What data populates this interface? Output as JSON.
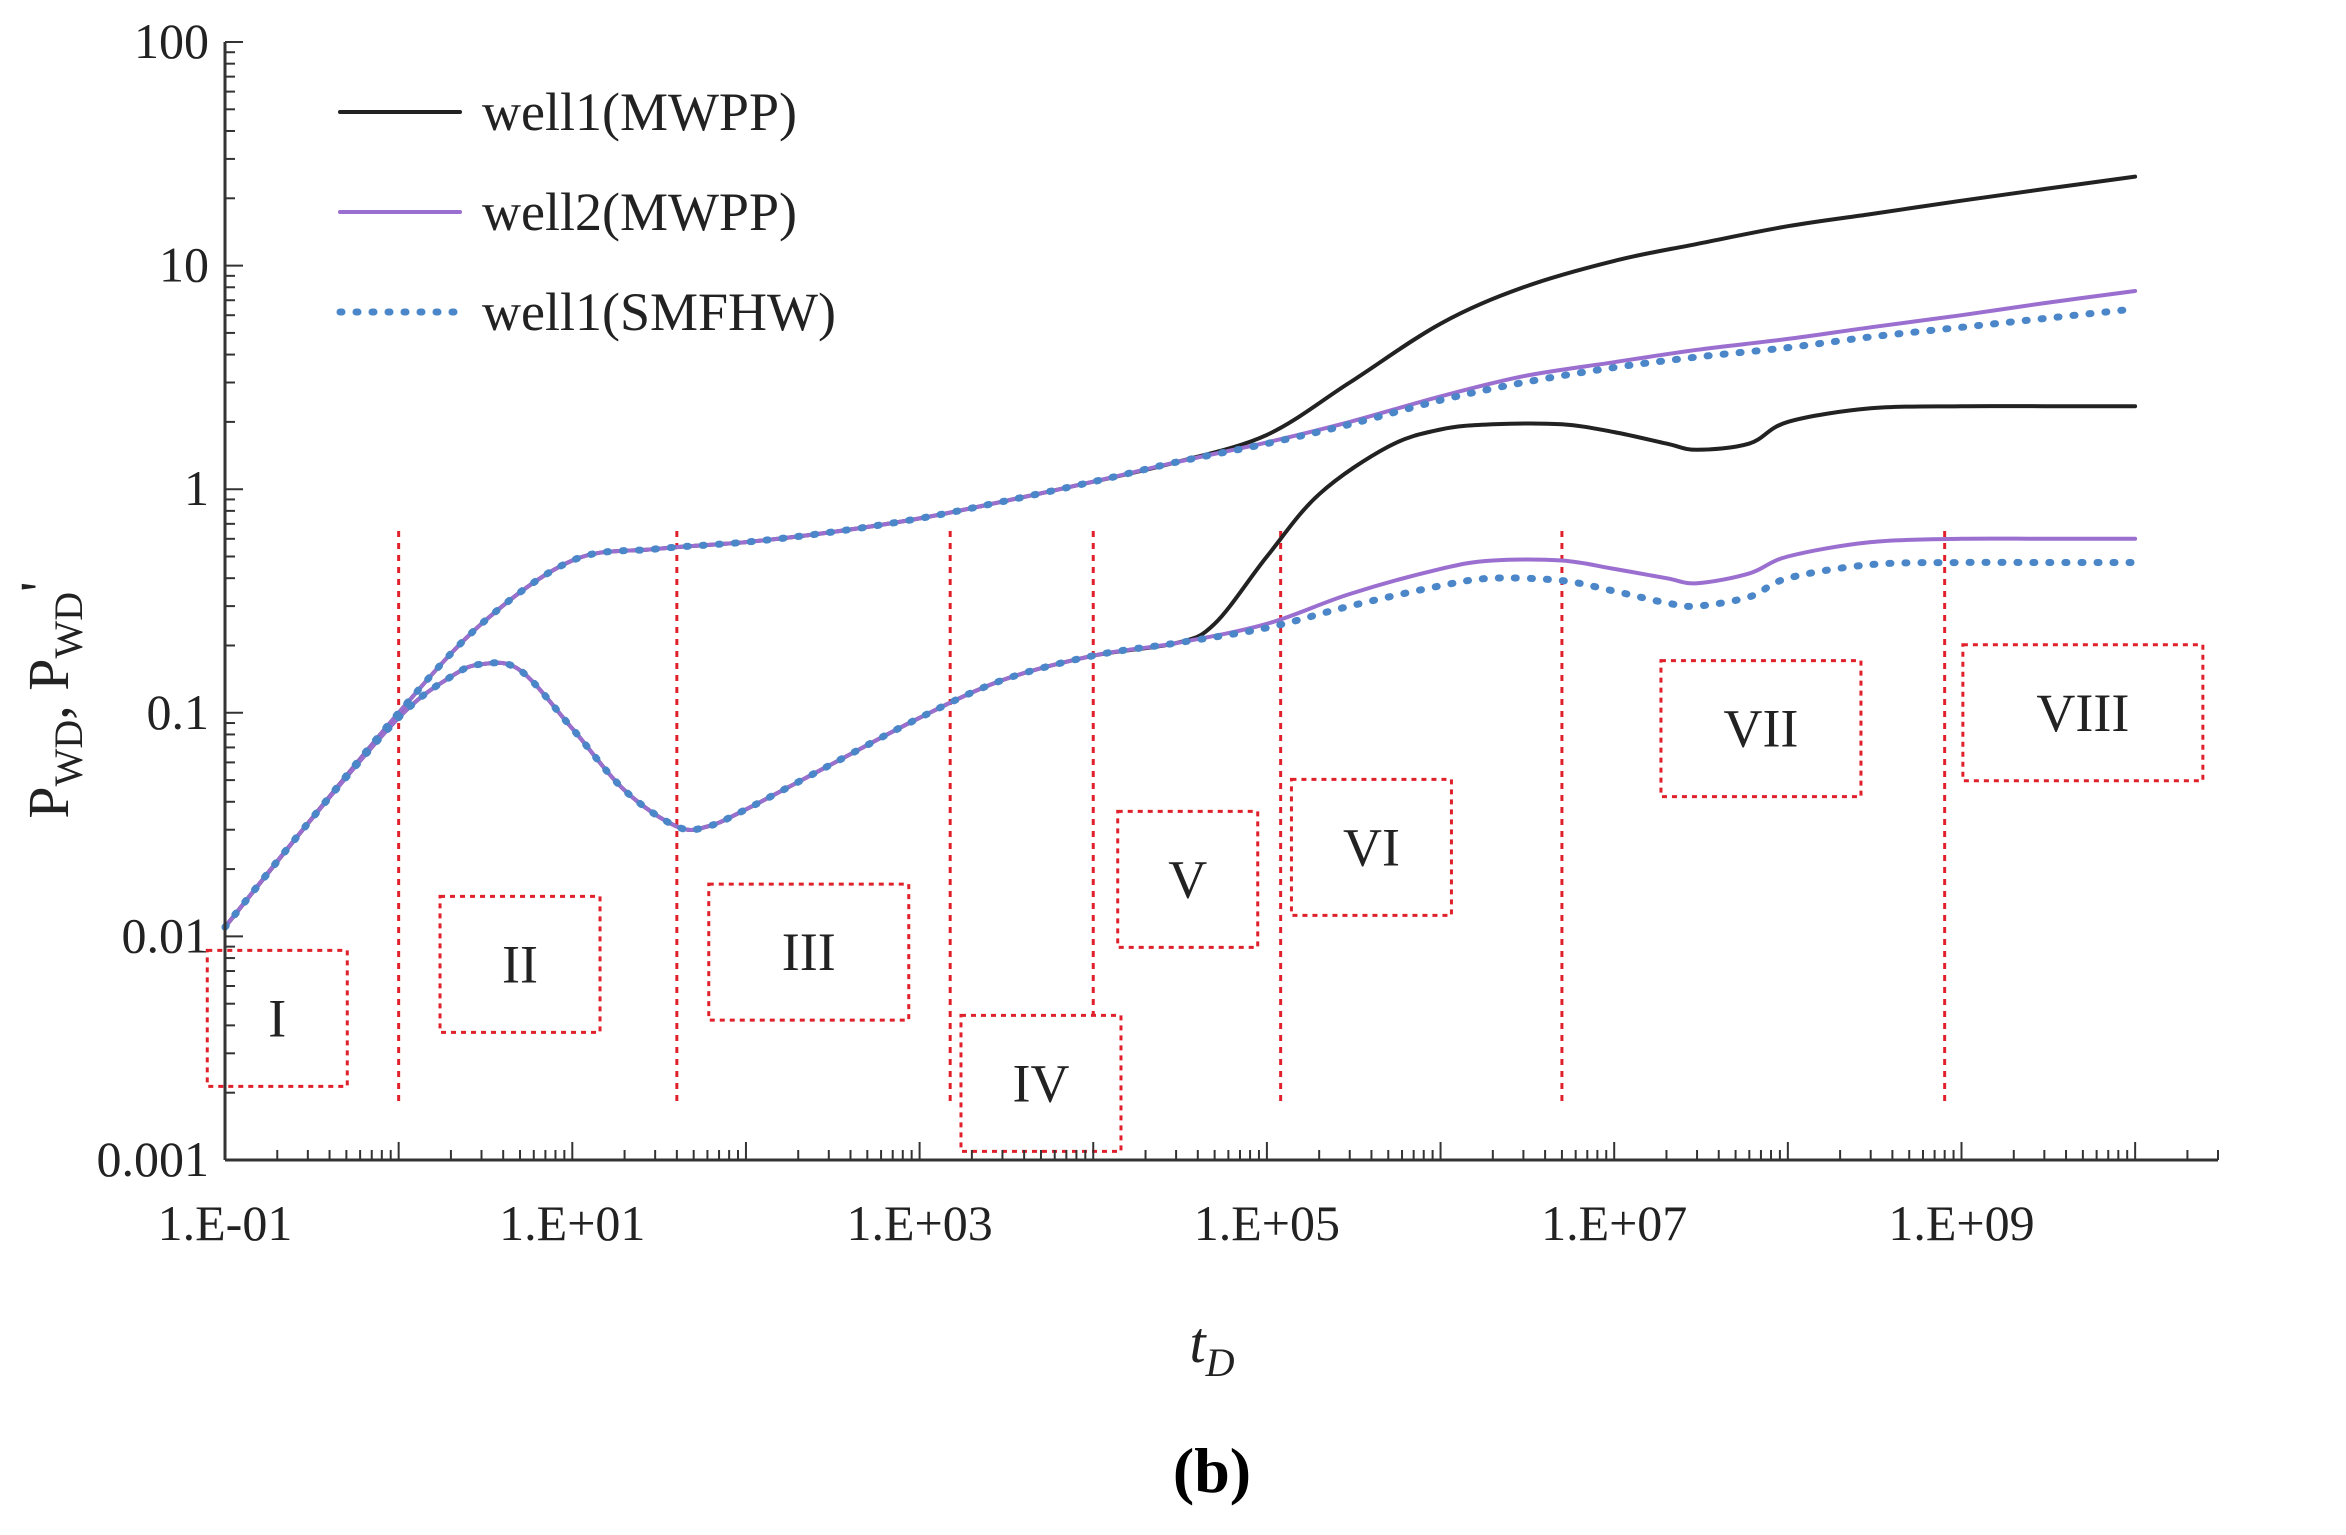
{
  "chart_data": {
    "type": "line",
    "panel_label": "(b)",
    "xlabel": "t",
    "xlabel_subscript": "D",
    "ylabel_parts": [
      "P",
      "WD",
      ", P",
      "WD",
      "'"
    ],
    "x_scale": "log",
    "y_scale": "log",
    "xlim": [
      0.1,
      30000000000
    ],
    "ylim": [
      0.001,
      100
    ],
    "x_ticks": [
      {
        "value": 0.1,
        "label": "1.E-01"
      },
      {
        "value": 10,
        "label": "1.E+01"
      },
      {
        "value": 1000,
        "label": "1.E+03"
      },
      {
        "value": 100000,
        "label": "1.E+05"
      },
      {
        "value": 10000000,
        "label": "1.E+07"
      },
      {
        "value": 1000000000,
        "label": "1.E+09"
      }
    ],
    "y_ticks": [
      {
        "value": 0.001,
        "label": "0.001"
      },
      {
        "value": 0.01,
        "label": "0.01"
      },
      {
        "value": 0.1,
        "label": "0.1"
      },
      {
        "value": 1,
        "label": "1"
      },
      {
        "value": 10,
        "label": "10"
      },
      {
        "value": 100,
        "label": "100"
      }
    ],
    "legend_position": "top-left",
    "series": [
      {
        "name": "well1(MWPP)",
        "color": "#222222",
        "style": "solid",
        "kind": "pressure",
        "x": [
          0.1,
          0.3,
          1,
          3,
          10,
          30,
          100,
          300,
          1000,
          3000,
          10000,
          30000,
          100000,
          300000,
          1000000,
          3000000,
          10000000,
          30000000,
          100000000,
          300000000,
          1000000000,
          3000000000,
          10000000000
        ],
        "y": [
          0.011,
          0.032,
          0.1,
          0.25,
          0.48,
          0.54,
          0.58,
          0.64,
          0.74,
          0.88,
          1.08,
          1.32,
          1.75,
          3.0,
          5.5,
          8.0,
          10.5,
          12.5,
          15.0,
          17.0,
          19.5,
          22.0,
          25.0
        ]
      },
      {
        "name": "well2(MWPP)",
        "color": "#9b6fcf",
        "style": "solid",
        "kind": "pressure",
        "x": [
          0.1,
          0.3,
          1,
          3,
          10,
          30,
          100,
          300,
          1000,
          3000,
          10000,
          30000,
          100000,
          300000,
          1000000,
          3000000,
          10000000,
          30000000,
          100000000,
          300000000,
          1000000000,
          3000000000,
          10000000000
        ],
        "y": [
          0.011,
          0.032,
          0.1,
          0.25,
          0.48,
          0.54,
          0.58,
          0.64,
          0.74,
          0.88,
          1.08,
          1.32,
          1.62,
          2.0,
          2.6,
          3.2,
          3.7,
          4.2,
          4.7,
          5.3,
          6.0,
          6.8,
          7.7
        ]
      },
      {
        "name": "well1(SMFHW)",
        "color": "#4a86c8",
        "style": "dotted",
        "kind": "pressure",
        "x": [
          0.1,
          0.3,
          1,
          3,
          10,
          30,
          100,
          300,
          1000,
          3000,
          10000,
          30000,
          100000,
          300000,
          1000000,
          3000000,
          10000000,
          30000000,
          100000000,
          300000000,
          1000000000,
          3000000000,
          10000000000
        ],
        "y": [
          0.011,
          0.032,
          0.1,
          0.25,
          0.48,
          0.54,
          0.58,
          0.64,
          0.74,
          0.88,
          1.08,
          1.32,
          1.6,
          1.95,
          2.5,
          3.0,
          3.5,
          3.9,
          4.3,
          4.8,
          5.3,
          5.8,
          6.4
        ]
      },
      {
        "name": "well1(MWPP) derivative",
        "color": "#222222",
        "style": "solid",
        "kind": "derivative",
        "x": [
          0.1,
          0.3,
          1,
          2,
          3,
          5,
          10,
          20,
          40,
          60,
          100,
          300,
          1000,
          3000,
          10000,
          30000,
          50000,
          100000,
          200000,
          500000,
          1000000,
          2000000,
          5000000,
          10000000,
          20000000,
          30000000,
          60000000,
          100000000,
          300000000,
          1000000000,
          3000000000,
          10000000000
        ],
        "y": [
          0.011,
          0.032,
          0.095,
          0.145,
          0.165,
          0.155,
          0.085,
          0.045,
          0.031,
          0.031,
          0.037,
          0.058,
          0.095,
          0.14,
          0.18,
          0.205,
          0.25,
          0.5,
          0.95,
          1.55,
          1.85,
          1.95,
          1.95,
          1.8,
          1.6,
          1.5,
          1.6,
          2.0,
          2.3,
          2.35,
          2.35,
          2.35
        ]
      },
      {
        "name": "well2(MWPP) derivative",
        "color": "#9b6fcf",
        "style": "solid",
        "kind": "derivative",
        "x": [
          0.1,
          0.3,
          1,
          2,
          3,
          5,
          10,
          20,
          40,
          60,
          100,
          300,
          1000,
          3000,
          10000,
          30000,
          100000,
          300000,
          1000000,
          2000000,
          5000000,
          10000000,
          20000000,
          30000000,
          60000000,
          100000000,
          300000000,
          1000000000,
          3000000000,
          10000000000
        ],
        "y": [
          0.011,
          0.032,
          0.095,
          0.145,
          0.165,
          0.155,
          0.085,
          0.045,
          0.031,
          0.031,
          0.037,
          0.058,
          0.095,
          0.14,
          0.18,
          0.205,
          0.25,
          0.34,
          0.44,
          0.48,
          0.48,
          0.44,
          0.4,
          0.38,
          0.42,
          0.5,
          0.58,
          0.6,
          0.6,
          0.6
        ]
      },
      {
        "name": "well1(SMFHW) derivative",
        "color": "#4a86c8",
        "style": "dotted",
        "kind": "derivative",
        "x": [
          0.1,
          0.3,
          1,
          2,
          3,
          5,
          10,
          20,
          40,
          60,
          100,
          300,
          1000,
          3000,
          10000,
          30000,
          100000,
          300000,
          1000000,
          2000000,
          5000000,
          10000000,
          20000000,
          30000000,
          60000000,
          100000000,
          300000000,
          1000000000,
          3000000000,
          10000000000
        ],
        "y": [
          0.011,
          0.032,
          0.095,
          0.145,
          0.165,
          0.155,
          0.085,
          0.045,
          0.031,
          0.031,
          0.037,
          0.058,
          0.095,
          0.14,
          0.18,
          0.205,
          0.24,
          0.3,
          0.37,
          0.4,
          0.39,
          0.35,
          0.31,
          0.3,
          0.33,
          0.4,
          0.46,
          0.47,
          0.47,
          0.47
        ]
      }
    ],
    "vlines": [
      1,
      40,
      1500,
      10000,
      120000,
      5000000,
      800000000
    ],
    "regions": [
      {
        "label": "I",
        "x_center": 0.2,
        "y_center": 0.0043
      },
      {
        "label": "II",
        "x_center": 5,
        "y_center": 0.0075
      },
      {
        "label": "III",
        "x_center": 230,
        "y_center": 0.0085
      },
      {
        "label": "IV",
        "x_center": 5000,
        "y_center": 0.0022
      },
      {
        "label": "V",
        "x_center": 35000,
        "y_center": 0.018
      },
      {
        "label": "VI",
        "x_center": 400000,
        "y_center": 0.025
      },
      {
        "label": "VII",
        "x_center": 70000000,
        "y_center": 0.085
      },
      {
        "label": "VIII",
        "x_center": 5000000000,
        "y_center": 0.1
      }
    ]
  }
}
